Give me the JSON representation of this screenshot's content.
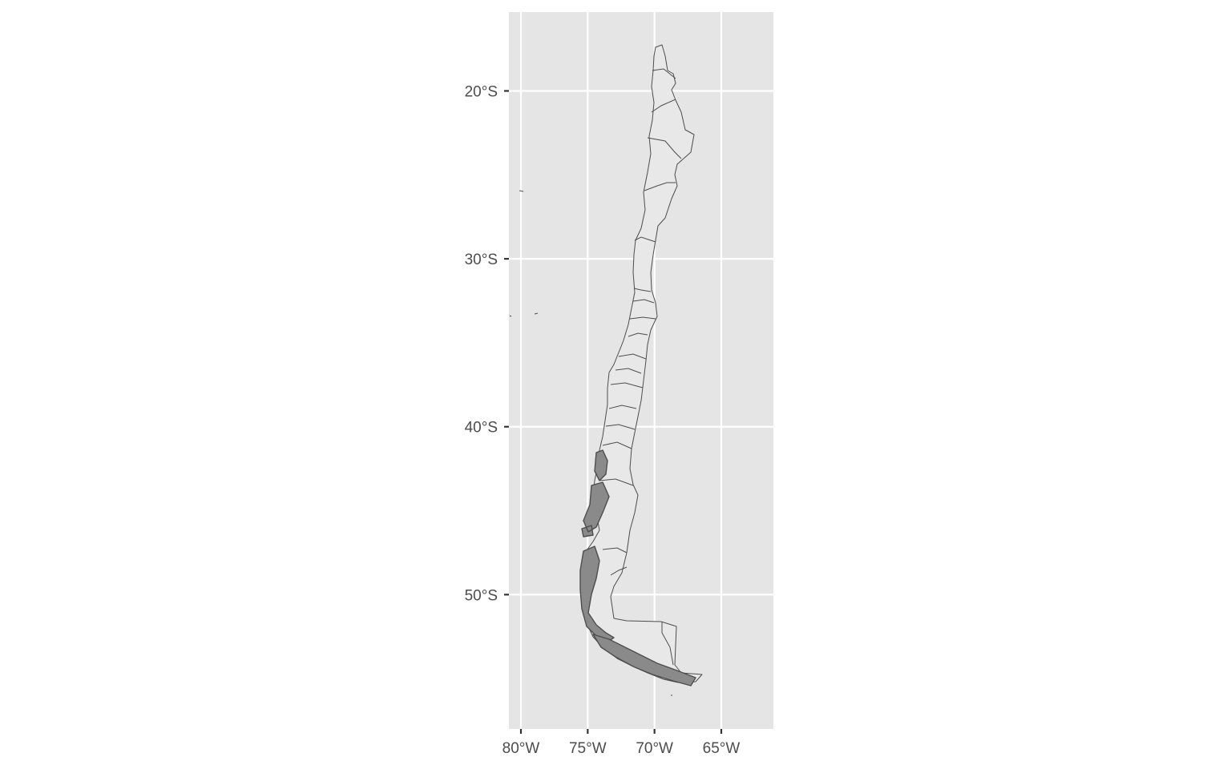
{
  "chart_data": {
    "type": "map",
    "title": "",
    "subject": "Chile administrative regions",
    "x_axis": {
      "label": "",
      "range_deg_lon": [
        -80.9,
        -61.1
      ],
      "ticks": [
        {
          "value": -80,
          "label": "80°W"
        },
        {
          "value": -75,
          "label": "75°W"
        },
        {
          "value": -70,
          "label": "70°W"
        },
        {
          "value": -65,
          "label": "65°W"
        }
      ]
    },
    "y_axis": {
      "label": "",
      "range_deg_lat": [
        -58.0,
        -15.3
      ],
      "ticks": [
        {
          "value": -20,
          "label": "20°S"
        },
        {
          "value": -30,
          "label": "30°S"
        },
        {
          "value": -40,
          "label": "40°S"
        },
        {
          "value": -50,
          "label": "50°S"
        }
      ]
    },
    "grid": true,
    "panel_color": "#e5e5e5",
    "fill_color": "#e8e8e8",
    "outline_color": "#4d4d4d"
  }
}
